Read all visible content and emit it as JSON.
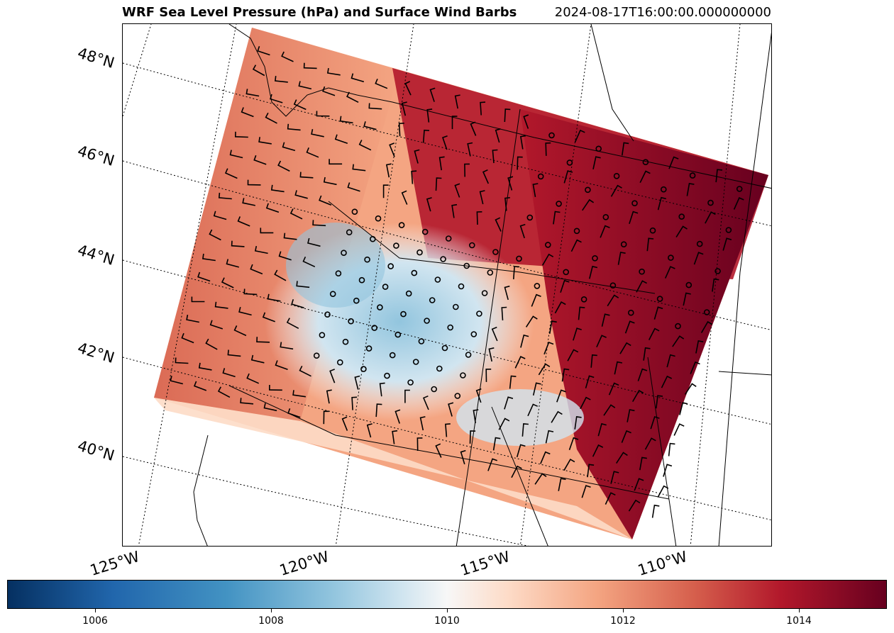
{
  "figure": {
    "title": "WRF Sea Level Pressure (hPa) and Surface Wind Barbs",
    "timestamp": "2024-08-17T16:00:00.000000000"
  },
  "map": {
    "projection": "lambert-conformal",
    "latitude_labels": [
      "48°N",
      "46°N",
      "44°N",
      "42°N",
      "40°N"
    ],
    "longitude_labels": [
      "125°W",
      "120°W",
      "115°W",
      "110°W"
    ],
    "gridlines": "dotted",
    "field": "sea-level-pressure",
    "colormap": "RdBu_r",
    "overlay": "wind-barbs",
    "low_pressure_region": "central Oregon / Nevada basin (blue)",
    "high_pressure_region": "Montana / Wyoming (dark red)"
  },
  "colorbar": {
    "tick_labels": [
      "1006",
      "1008",
      "1010",
      "1012",
      "1014"
    ],
    "range": [
      1005,
      1015
    ]
  }
}
